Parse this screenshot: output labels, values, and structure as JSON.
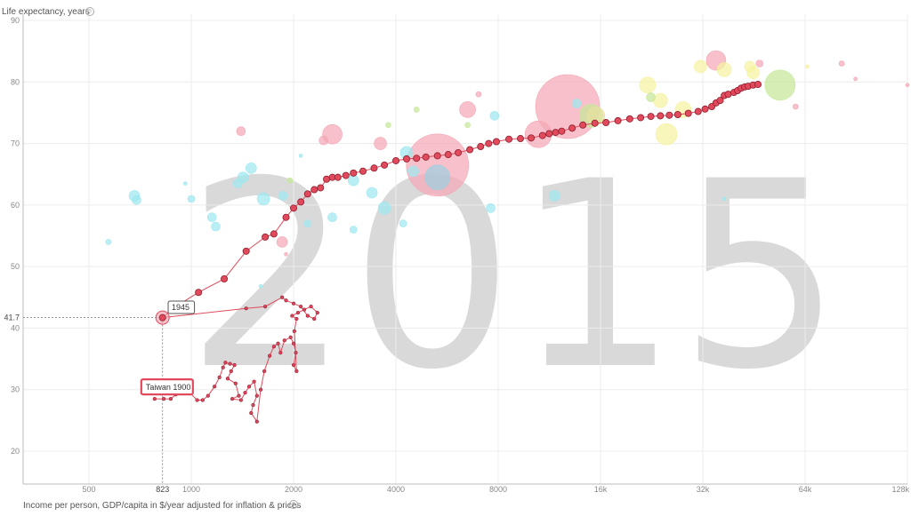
{
  "chart_data": {
    "type": "scatter",
    "year_label": "2015",
    "xlabel": "Income per person, GDP/capita in $/year adjusted for inflation & prices",
    "ylabel": "Life expectancy, years",
    "x_scale": "log",
    "xlim": [
      320,
      128000
    ],
    "ylim": [
      15,
      90
    ],
    "x_ticks": [
      {
        "value": 500,
        "label": "500"
      },
      {
        "value": 1000,
        "label": "1000"
      },
      {
        "value": 2000,
        "label": "2000"
      },
      {
        "value": 4000,
        "label": "4000"
      },
      {
        "value": 8000,
        "label": "8000"
      },
      {
        "value": 16000,
        "label": "16k"
      },
      {
        "value": 32000,
        "label": "32k"
      },
      {
        "value": 64000,
        "label": "64k"
      },
      {
        "value": 128000,
        "label": "128k"
      }
    ],
    "y_ticks": [
      20,
      30,
      40,
      50,
      60,
      70,
      80,
      90
    ],
    "grid": true,
    "highlight": {
      "label_start": "Taiwan 1900",
      "label_selected": "1945",
      "selected": {
        "x": 823,
        "y": 41.7
      },
      "x_readout": "823",
      "y_readout": "41.7",
      "color": "#e04a5c",
      "trail_pre": [
        [
          780,
          28.5
        ],
        [
          830,
          28.5
        ],
        [
          870,
          28.5
        ],
        [
          900,
          29.2
        ],
        [
          920,
          31.5
        ],
        [
          950,
          29.5
        ],
        [
          990,
          29.5
        ],
        [
          1040,
          28.3
        ],
        [
          1080,
          28.3
        ],
        [
          1120,
          29.0
        ],
        [
          1170,
          30.5
        ],
        [
          1210,
          32.0
        ],
        [
          1240,
          33.6
        ],
        [
          1260,
          34.4
        ],
        [
          1300,
          34.2
        ],
        [
          1340,
          34.0
        ],
        [
          1310,
          33.0
        ],
        [
          1280,
          31.8
        ],
        [
          1350,
          31.0
        ],
        [
          1380,
          29.0
        ],
        [
          1320,
          28.5
        ],
        [
          1400,
          28.3
        ],
        [
          1440,
          29.5
        ],
        [
          1480,
          30.5
        ],
        [
          1530,
          31.3
        ],
        [
          1560,
          29.0
        ],
        [
          1520,
          27.5
        ],
        [
          1500,
          26.2
        ],
        [
          1560,
          24.8
        ],
        [
          1600,
          30.0
        ],
        [
          1640,
          33.0
        ],
        [
          1700,
          35.5
        ],
        [
          1750,
          37.0
        ],
        [
          1800,
          37.5
        ],
        [
          1830,
          36.0
        ],
        [
          1880,
          38.0
        ],
        [
          1960,
          38.5
        ],
        [
          2000,
          37.5
        ],
        [
          2030,
          36.0
        ],
        [
          2000,
          34.0
        ],
        [
          2040,
          33.0
        ],
        [
          2010,
          39.5
        ],
        [
          2040,
          41.5
        ],
        [
          1980,
          42.0
        ],
        [
          2060,
          42.5
        ],
        [
          2150,
          43.0
        ],
        [
          2250,
          43.5
        ],
        [
          2350,
          42.5
        ],
        [
          2300,
          41.5
        ],
        [
          2200,
          42.0
        ],
        [
          2100,
          43.5
        ],
        [
          2000,
          44.0
        ],
        [
          1900,
          44.5
        ],
        [
          1850,
          45.0
        ],
        [
          1650,
          43.5
        ],
        [
          1450,
          43.2
        ],
        [
          823,
          41.7
        ]
      ],
      "trail_post": [
        [
          823,
          41.7
        ],
        [
          900,
          43.5
        ],
        [
          1050,
          45.8
        ],
        [
          1250,
          48.0
        ],
        [
          1450,
          52.5
        ],
        [
          1650,
          54.8
        ],
        [
          1750,
          55.3
        ],
        [
          1900,
          58.0
        ],
        [
          2000,
          59.5
        ],
        [
          2100,
          60.5
        ],
        [
          2200,
          61.8
        ],
        [
          2300,
          62.5
        ],
        [
          2400,
          62.8
        ],
        [
          2500,
          64.2
        ],
        [
          2600,
          64.5
        ],
        [
          2700,
          64.5
        ],
        [
          2850,
          64.8
        ],
        [
          3000,
          65.2
        ],
        [
          3200,
          65.5
        ],
        [
          3450,
          66.0
        ],
        [
          3700,
          66.5
        ],
        [
          4000,
          67.2
        ],
        [
          4300,
          67.5
        ],
        [
          4600,
          67.6
        ],
        [
          4900,
          67.8
        ],
        [
          5300,
          68.0
        ],
        [
          5700,
          68.2
        ],
        [
          6100,
          68.5
        ],
        [
          6600,
          69.0
        ],
        [
          7100,
          69.5
        ],
        [
          7500,
          70.0
        ],
        [
          7900,
          70.3
        ],
        [
          8600,
          70.7
        ],
        [
          9300,
          70.8
        ],
        [
          10000,
          70.9
        ],
        [
          10800,
          71.3
        ],
        [
          11300,
          71.6
        ],
        [
          11800,
          71.8
        ],
        [
          12300,
          72.0
        ],
        [
          13200,
          72.5
        ],
        [
          14200,
          73.0
        ],
        [
          15400,
          73.3
        ],
        [
          16600,
          73.4
        ],
        [
          18000,
          73.7
        ],
        [
          19500,
          74.0
        ],
        [
          21000,
          74.2
        ],
        [
          22500,
          74.4
        ],
        [
          24000,
          74.5
        ],
        [
          25500,
          74.6
        ],
        [
          27000,
          74.7
        ],
        [
          29000,
          74.9
        ],
        [
          31000,
          75.2
        ],
        [
          32500,
          75.6
        ],
        [
          34000,
          76.0
        ],
        [
          35000,
          76.6
        ],
        [
          36000,
          77.0
        ],
        [
          37000,
          77.8
        ],
        [
          38000,
          78.0
        ],
        [
          39500,
          78.3
        ],
        [
          40500,
          78.6
        ],
        [
          41500,
          79.0
        ],
        [
          42500,
          79.2
        ],
        [
          43500,
          79.3
        ],
        [
          45000,
          79.5
        ],
        [
          46500,
          79.6
        ]
      ]
    },
    "bubbles": [
      {
        "x": 12800,
        "y": 76.0,
        "r": 36,
        "color": "#f4a7b5"
      },
      {
        "x": 5300,
        "y": 66.5,
        "r": 35,
        "color": "#f4a7b5"
      },
      {
        "x": 5300,
        "y": 64.5,
        "r": 14,
        "color": "#9ecfe0"
      },
      {
        "x": 15000,
        "y": 74.5,
        "r": 13,
        "color": "#c6e89a"
      },
      {
        "x": 54000,
        "y": 79.5,
        "r": 17,
        "color": "#c6e89a"
      },
      {
        "x": 35000,
        "y": 83.5,
        "r": 11,
        "color": "#f4a7b5"
      },
      {
        "x": 10500,
        "y": 71.5,
        "r": 15,
        "color": "#f4a7b5"
      },
      {
        "x": 15500,
        "y": 74.5,
        "r": 10,
        "color": "#e8e0a0"
      },
      {
        "x": 25000,
        "y": 71.5,
        "r": 12,
        "color": "#f5f2a0"
      },
      {
        "x": 22000,
        "y": 79.5,
        "r": 9,
        "color": "#f5f2a0"
      },
      {
        "x": 24000,
        "y": 77.0,
        "r": 8,
        "color": "#f5f2a0"
      },
      {
        "x": 28000,
        "y": 75.5,
        "r": 9,
        "color": "#f5f2a0"
      },
      {
        "x": 37000,
        "y": 82.0,
        "r": 8,
        "color": "#f5f2a0"
      },
      {
        "x": 31500,
        "y": 82.5,
        "r": 7,
        "color": "#f5f2a0"
      },
      {
        "x": 44000,
        "y": 82.5,
        "r": 6,
        "color": "#f5f2a0"
      },
      {
        "x": 2600,
        "y": 71.5,
        "r": 11,
        "color": "#f4a7b5"
      },
      {
        "x": 6500,
        "y": 75.5,
        "r": 9,
        "color": "#f4a7b5"
      },
      {
        "x": 3600,
        "y": 70.0,
        "r": 7,
        "color": "#f4a7b5"
      },
      {
        "x": 1400,
        "y": 72.0,
        "r": 5,
        "color": "#f4a7b5"
      },
      {
        "x": 1850,
        "y": 54.0,
        "r": 6,
        "color": "#f4a7b5"
      },
      {
        "x": 2450,
        "y": 70.5,
        "r": 5,
        "color": "#f4a7b5"
      },
      {
        "x": 4300,
        "y": 68.5,
        "r": 7,
        "color": "#9ee8f0"
      },
      {
        "x": 4500,
        "y": 65.5,
        "r": 6,
        "color": "#9ee8f0"
      },
      {
        "x": 3000,
        "y": 64.0,
        "r": 6,
        "color": "#9ee8f0"
      },
      {
        "x": 3400,
        "y": 62.0,
        "r": 6,
        "color": "#9ee8f0"
      },
      {
        "x": 3700,
        "y": 59.5,
        "r": 7,
        "color": "#9ee8f0"
      },
      {
        "x": 1420,
        "y": 64.5,
        "r": 6,
        "color": "#9ee8f0"
      },
      {
        "x": 1500,
        "y": 66.0,
        "r": 6,
        "color": "#9ee8f0"
      },
      {
        "x": 1630,
        "y": 61.0,
        "r": 7,
        "color": "#9ee8f0"
      },
      {
        "x": 1370,
        "y": 63.5,
        "r": 5,
        "color": "#9ee8f0"
      },
      {
        "x": 1150,
        "y": 58.0,
        "r": 5,
        "color": "#9ee8f0"
      },
      {
        "x": 1180,
        "y": 56.5,
        "r": 5,
        "color": "#9ee8f0"
      },
      {
        "x": 680,
        "y": 61.5,
        "r": 6,
        "color": "#9ee8f0"
      },
      {
        "x": 690,
        "y": 60.8,
        "r": 5,
        "color": "#9ee8f0"
      },
      {
        "x": 1000,
        "y": 61.0,
        "r": 4,
        "color": "#9ee8f0"
      },
      {
        "x": 1860,
        "y": 61.5,
        "r": 5,
        "color": "#9ee8f0"
      },
      {
        "x": 2600,
        "y": 58.0,
        "r": 5,
        "color": "#9ee8f0"
      },
      {
        "x": 3000,
        "y": 56.0,
        "r": 4,
        "color": "#9ee8f0"
      },
      {
        "x": 4200,
        "y": 57.0,
        "r": 4,
        "color": "#9ee8f0"
      },
      {
        "x": 7600,
        "y": 59.5,
        "r": 5,
        "color": "#9ee8f0"
      },
      {
        "x": 11700,
        "y": 61.5,
        "r": 6,
        "color": "#9ee8f0"
      },
      {
        "x": 2200,
        "y": 57.0,
        "r": 4,
        "color": "#9ee8f0"
      },
      {
        "x": 570,
        "y": 54.0,
        "r": 3,
        "color": "#9ee8f0"
      },
      {
        "x": 7800,
        "y": 74.5,
        "r": 5,
        "color": "#9ee8f0"
      },
      {
        "x": 13600,
        "y": 76.5,
        "r": 5,
        "color": "#9ee8f0"
      },
      {
        "x": 4600,
        "y": 75.5,
        "r": 3,
        "color": "#c6e89a"
      },
      {
        "x": 6500,
        "y": 73.0,
        "r": 3,
        "color": "#c6e89a"
      },
      {
        "x": 1950,
        "y": 64.0,
        "r": 3,
        "color": "#c6e89a"
      },
      {
        "x": 22500,
        "y": 77.5,
        "r": 5,
        "color": "#c6e89a"
      },
      {
        "x": 7000,
        "y": 78.0,
        "r": 3,
        "color": "#f4a7b5"
      },
      {
        "x": 3800,
        "y": 73.0,
        "r": 3,
        "color": "#c6e89a"
      },
      {
        "x": 45000,
        "y": 81.5,
        "r": 7,
        "color": "#f5f2a0"
      },
      {
        "x": 47000,
        "y": 83.0,
        "r": 4,
        "color": "#f4a7b5"
      },
      {
        "x": 60000,
        "y": 76.0,
        "r": 3,
        "color": "#f4a7b5"
      },
      {
        "x": 82000,
        "y": 83.0,
        "r": 3,
        "color": "#f4a7b5"
      },
      {
        "x": 90000,
        "y": 80.5,
        "r": 2,
        "color": "#f4a7b5"
      },
      {
        "x": 128000,
        "y": 79.5,
        "r": 2,
        "color": "#f4a7b5"
      },
      {
        "x": 65000,
        "y": 82.5,
        "r": 2,
        "color": "#f5f2a0"
      },
      {
        "x": 37000,
        "y": 61.0,
        "r": 2,
        "color": "#9ee8f0"
      },
      {
        "x": 1600,
        "y": 46.8,
        "r": 2,
        "color": "#9ee8f0"
      },
      {
        "x": 960,
        "y": 63.5,
        "r": 2,
        "color": "#9ee8f0"
      },
      {
        "x": 2100,
        "y": 68.0,
        "r": 2,
        "color": "#9ee8f0"
      },
      {
        "x": 1900,
        "y": 52.0,
        "r": 2,
        "color": "#f4a7b5"
      }
    ]
  }
}
